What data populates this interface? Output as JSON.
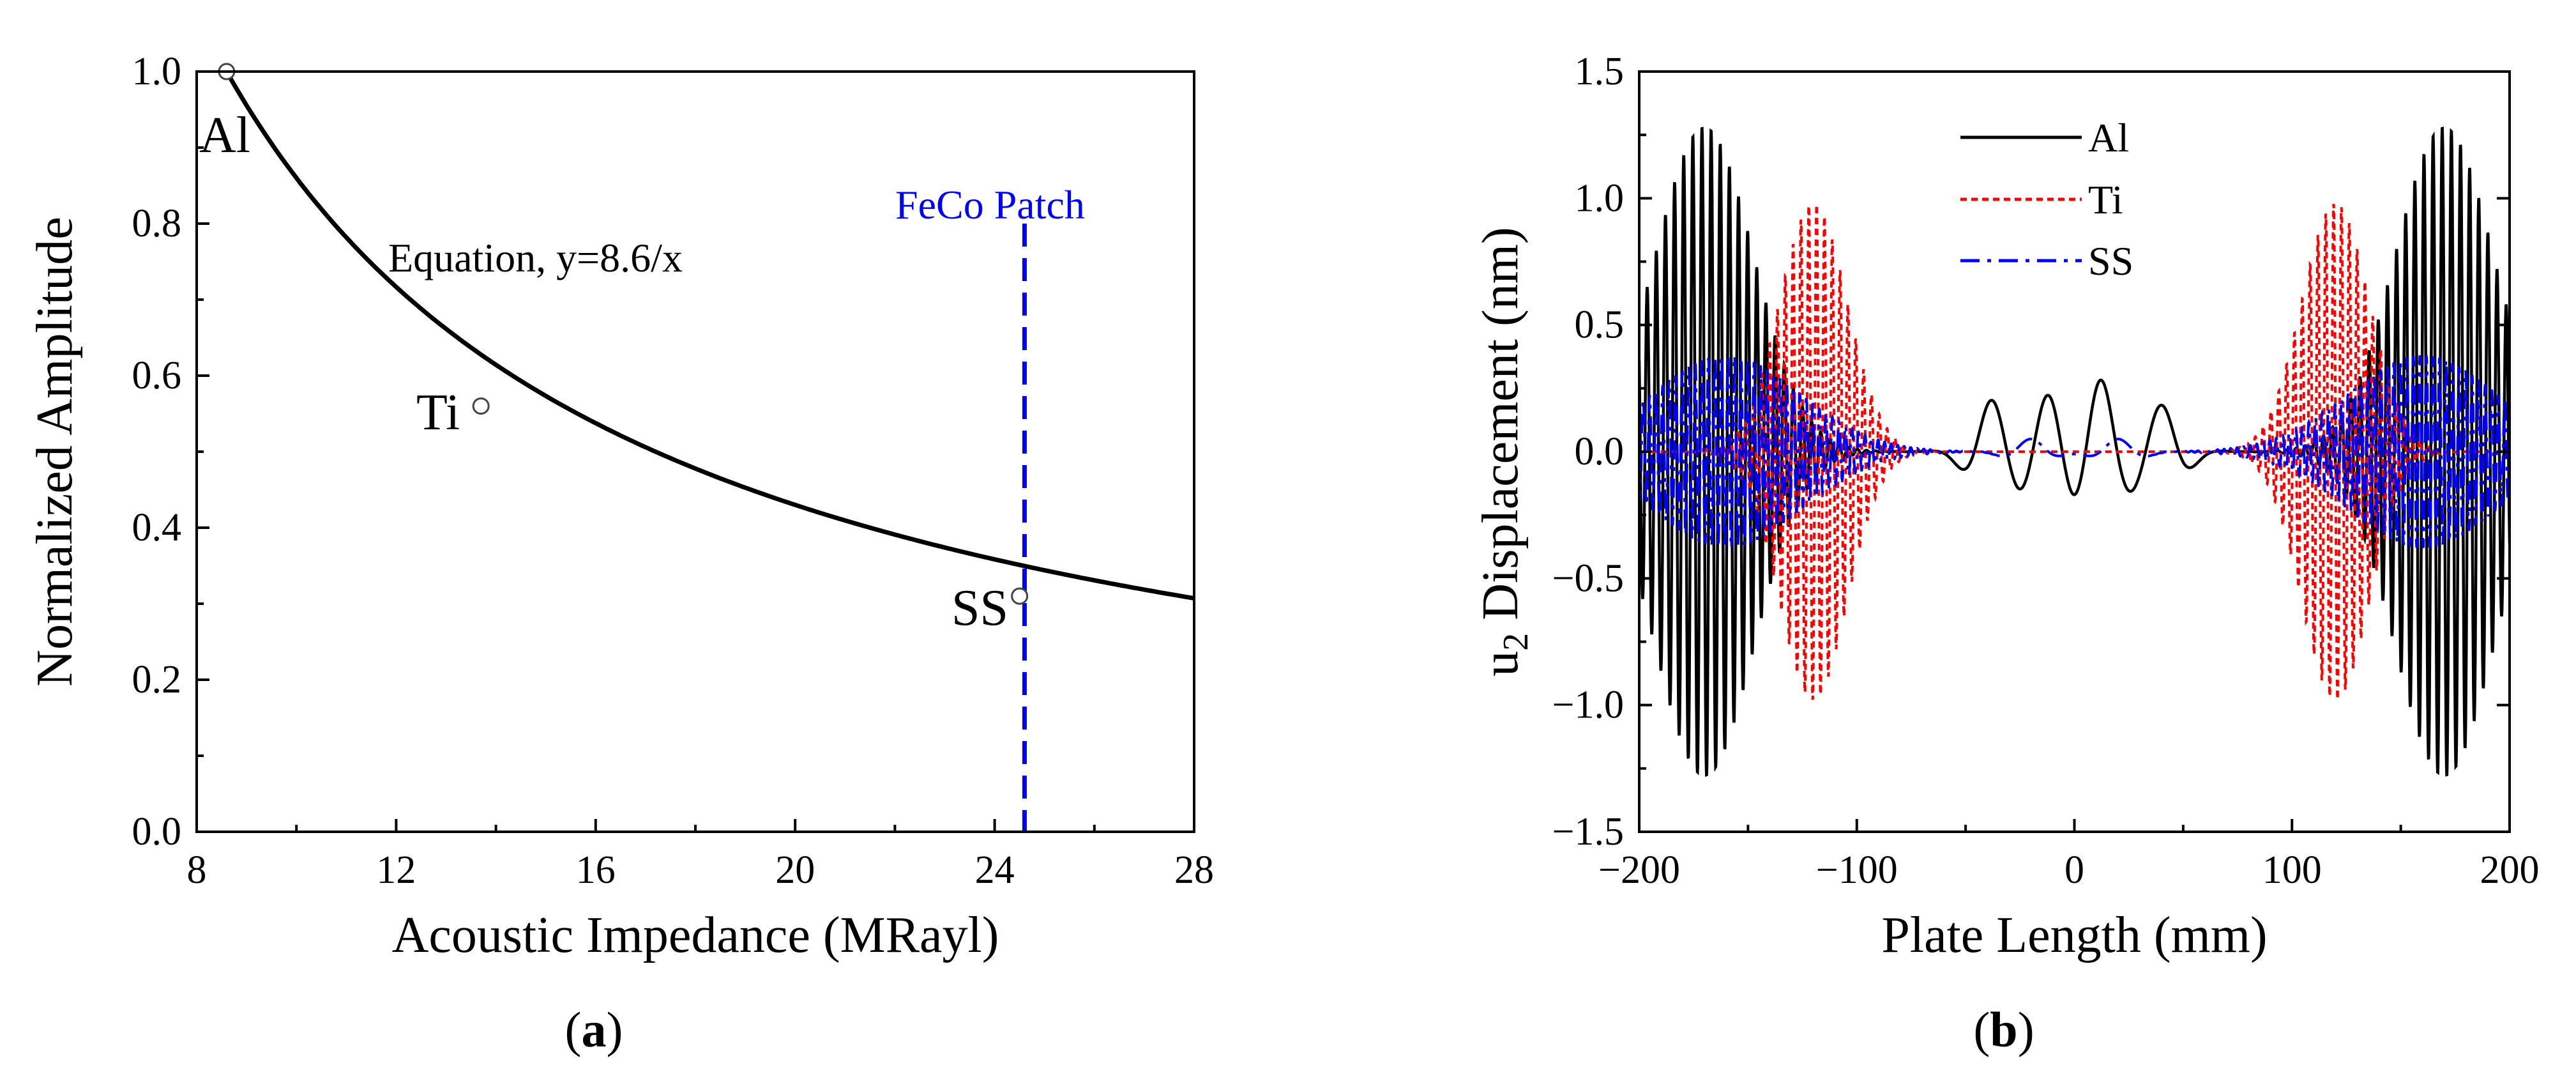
{
  "chart_data": [
    {
      "id": "a",
      "type": "line",
      "caption": {
        "open": "(",
        "letter": "a",
        "close": ")"
      },
      "xlabel": "Acoustic Impedance (MRayl)",
      "ylabel": "Normalized Amplitude",
      "xlim": [
        8,
        28
      ],
      "ylim": [
        0,
        1
      ],
      "xticks": [
        "8",
        "12",
        "16",
        "20",
        "24",
        "28"
      ],
      "yticks": [
        "0.0",
        "0.2",
        "0.4",
        "0.6",
        "0.8",
        "1.0"
      ],
      "curve": {
        "name": "Equation, y=8.6/x",
        "k": 8.6,
        "x_start": 8.6,
        "x_end": 28
      },
      "points": [
        {
          "label": "Al",
          "x": 8.6,
          "y": 1.0
        },
        {
          "label": "Ti",
          "x": 13.7,
          "y": 0.56
        },
        {
          "label": "SS",
          "x": 24.5,
          "y": 0.31
        }
      ],
      "vline": {
        "label": "FeCo Patch",
        "x": 24.6,
        "y_top": 0.8,
        "color": "#0000ff"
      },
      "curve_label": "Equation, y=8.6/x"
    },
    {
      "id": "b",
      "type": "line",
      "caption": {
        "open": "(",
        "letter": "b",
        "close": ")"
      },
      "xlabel": "Plate Length (mm)",
      "ylabel": {
        "u": "u",
        "sub": "2",
        "rest": " Displacement (nm)"
      },
      "xlim": [
        -200,
        200
      ],
      "ylim": [
        -1.5,
        1.5
      ],
      "xticks": [
        "−200",
        "−100",
        "0",
        "100",
        "200"
      ],
      "yticks": [
        "−1.5",
        "−1.0",
        "−0.5",
        "0.0",
        "0.5",
        "1.0",
        "1.5"
      ],
      "legend": [
        "Al",
        "Ti",
        "SS"
      ],
      "series": [
        {
          "name": "Al",
          "color": "#000000",
          "style": "solid",
          "amplitude": 1.28,
          "packet_center": 170,
          "packet_width": 32,
          "period_mm": 4.2,
          "center_bumps": [
            [
              -38,
              0.2
            ],
            [
              -12,
              0.22
            ],
            [
              12,
              0.28
            ],
            [
              40,
              0.18
            ]
          ]
        },
        {
          "name": "Ti",
          "color": "#ff0000",
          "style": "dotted",
          "amplitude": 0.98,
          "packet_center": 120,
          "packet_width": 22,
          "period_mm": 3.6,
          "center_bumps": []
        },
        {
          "name": "SS",
          "color": "#0000ff",
          "style": "dashdot",
          "amplitude": 0.38,
          "packet_center": 160,
          "packet_width": 48,
          "period_mm": 3.0,
          "center_bumps": [
            [
              -20,
              0.05
            ],
            [
              20,
              0.05
            ]
          ]
        }
      ]
    }
  ]
}
